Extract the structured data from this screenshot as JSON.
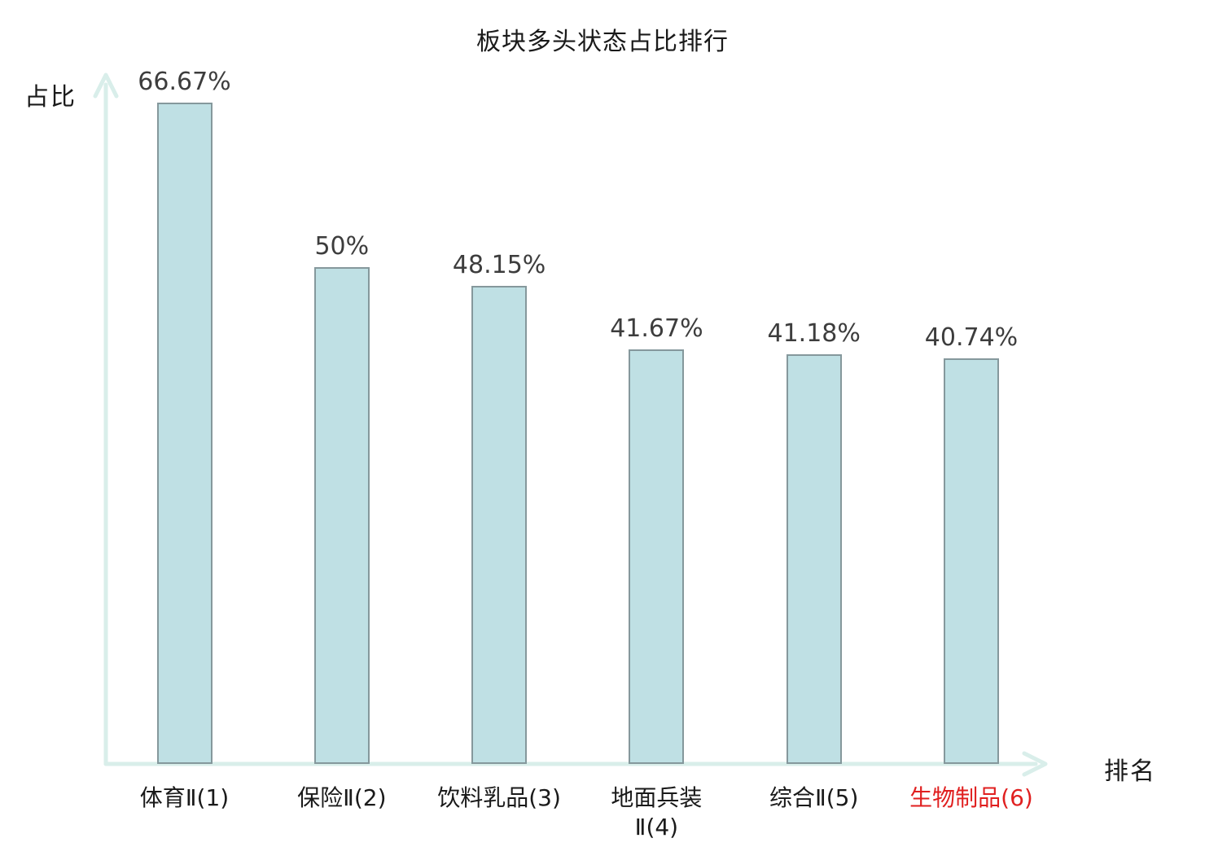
{
  "chart_data": {
    "type": "bar",
    "title": "板块多头状态占比排行",
    "xlabel": "排名",
    "ylabel": "占比",
    "categories": [
      "体育Ⅱ(1)",
      "保险Ⅱ(2)",
      "饮料乳品(3)",
      "地面兵装\nⅡ(4)",
      "综合Ⅱ(5)",
      "生物制品(6)"
    ],
    "values": [
      66.67,
      50,
      48.15,
      41.67,
      41.18,
      40.74
    ],
    "value_labels": [
      "66.67%",
      "50%",
      "48.15%",
      "41.67%",
      "41.18%",
      "40.74%"
    ],
    "ylim": [
      0,
      70
    ],
    "grid": false,
    "legend": "none",
    "highlight_index": 5,
    "colors": {
      "bar_fill": "#bfe0e4",
      "bar_border": "#85989c",
      "axis": "#d9eeea",
      "value_label": "#3d3d3d",
      "category_label": "#1a1a1a",
      "highlight_label": "#e01f1f",
      "title": "#1a1a1a"
    }
  }
}
